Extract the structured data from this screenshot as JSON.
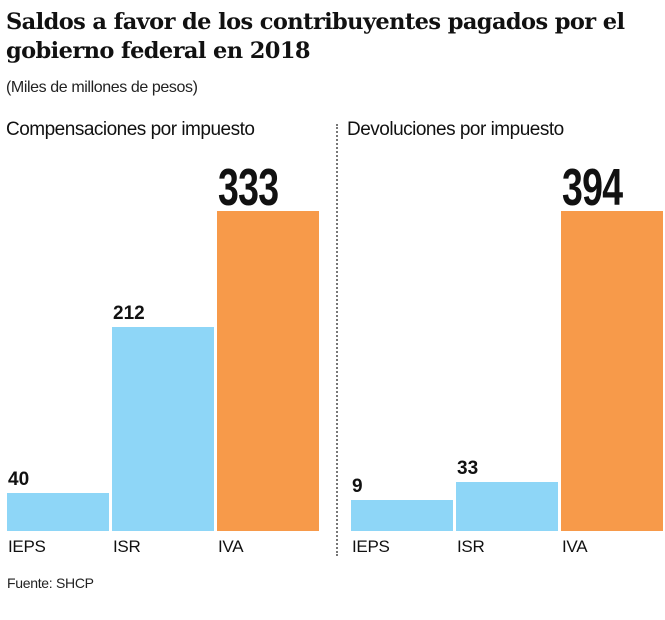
{
  "chart_data": [
    {
      "type": "bar",
      "title": "Saldos a favor de los contribuyentes pagados por el gobierno federal en 2018",
      "subtitle": "(Miles de millones de pesos)",
      "panel_title": "Compensaciones por impuesto",
      "categories": [
        "IEPS",
        "ISR",
        "IVA"
      ],
      "values": [
        40,
        212,
        333
      ],
      "colors": [
        "#8ed6f7",
        "#8ed6f7",
        "#f79a4a"
      ],
      "grid": false
    },
    {
      "type": "bar",
      "panel_title": "Devoluciones por impuesto",
      "categories": [
        "IEPS",
        "ISR",
        "IVA"
      ],
      "values": [
        9,
        33,
        394
      ],
      "colors": [
        "#8ed6f7",
        "#8ed6f7",
        "#f79a4a"
      ],
      "grid": false
    }
  ],
  "source": "Fuente: SHCP"
}
